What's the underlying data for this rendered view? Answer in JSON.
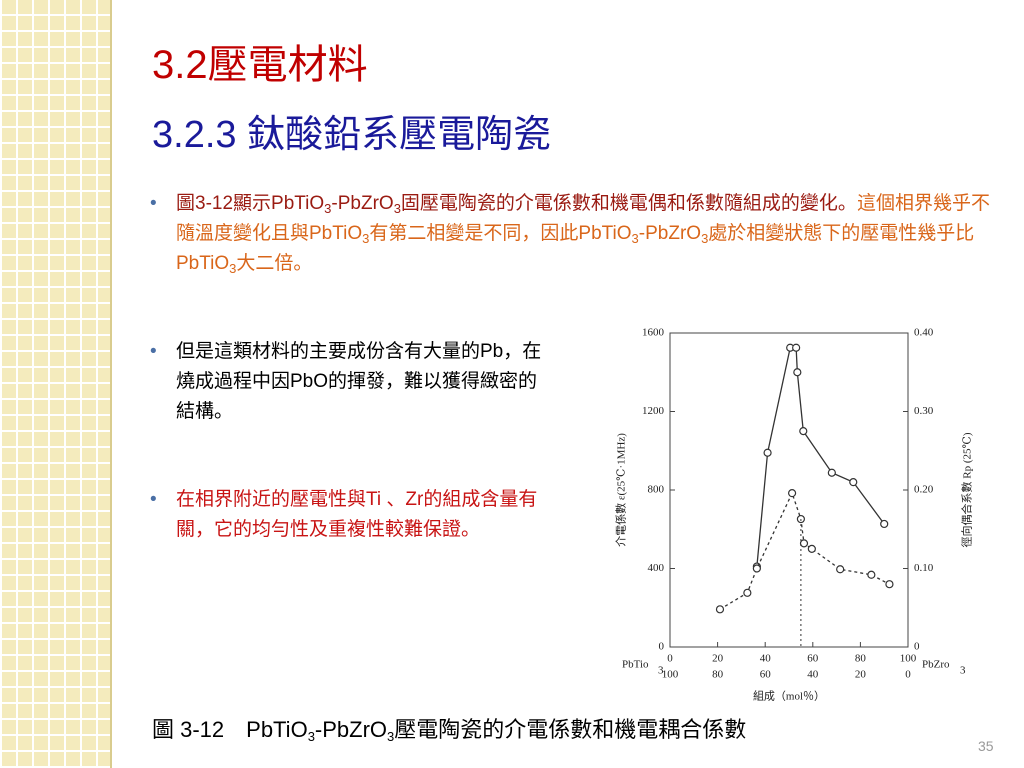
{
  "title": {
    "line1": "3.2壓電材料",
    "line2": "3.2.3 鈦酸鉛系壓電陶瓷"
  },
  "bullets": [
    {
      "runs": [
        {
          "text": "圖3-12顯示PbTiO",
          "color": "#9a1b12"
        },
        {
          "text": "3",
          "color": "#9a1b12",
          "style": "sub"
        },
        {
          "text": "-PbZrO",
          "color": "#9a1b12"
        },
        {
          "text": "3",
          "color": "#9a1b12",
          "style": "sub"
        },
        {
          "text": "固壓電陶瓷的介電係數和機電偶和係數隨組成的變化。",
          "color": "#9a1b12"
        },
        {
          "text": "這個相界幾乎不隨溫度變化且與PbTiO",
          "color": "#d9661a"
        },
        {
          "text": "3",
          "color": "#d9661a",
          "style": "sub"
        },
        {
          "text": "有第二相變是不同，因此PbTiO",
          "color": "#d9661a"
        },
        {
          "text": "3",
          "color": "#d9661a",
          "style": "sub"
        },
        {
          "text": "-PbZrO",
          "color": "#d9661a"
        },
        {
          "text": "3",
          "color": "#d9661a",
          "style": "sub"
        },
        {
          "text": "處於相變狀態下的壓電性幾乎比PbTiO",
          "color": "#d9661a"
        },
        {
          "text": "3",
          "color": "#d9661a",
          "style": "sub"
        },
        {
          "text": "大二倍。",
          "color": "#d9661a"
        }
      ]
    },
    {
      "runs": [
        {
          "text": "但是這類材料的主要成份含有大量的Pb，在燒成過程中因PbO的揮發，難以獲得緻密的結構。",
          "color": "#000000"
        }
      ]
    },
    {
      "runs": [
        {
          "text": "在相界附近的壓電性與Ti 、Zr的組成含量有關，它的均勻性及重複性較難保證。",
          "color": "#c81414"
        }
      ]
    }
  ],
  "chart_data": {
    "type": "line",
    "y_label": "介電係數 ε(25℃·1MHz)",
    "y2_label": "徑向偶合系數 Rp (25℃)",
    "x_label": "組成（mol％）",
    "x_left_label": "PbTio",
    "x_left_sub": "3",
    "x_right_label": "PbZro",
    "x_right_sub": "3",
    "xlim": [
      0,
      100
    ],
    "xticks": [
      0,
      20,
      40,
      60,
      80,
      100
    ],
    "x_second_row": [
      100,
      80,
      60,
      40,
      20,
      0
    ],
    "ylim": [
      0,
      1600
    ],
    "yticks": [
      0,
      400,
      800,
      1200,
      1600
    ],
    "y2lim": [
      0,
      0.4
    ],
    "y2ticks": [
      0,
      {
        "value": 0.1,
        "label": "0.10"
      },
      {
        "value": 0.2,
        "label": "0.20"
      },
      {
        "value": 0.3,
        "label": "0.30"
      },
      {
        "value": 0.4,
        "label": "0.40"
      }
    ],
    "series": [
      {
        "color": "#333333",
        "dash": false,
        "x": [
          36.5,
          41,
          50.5,
          53,
          53.5,
          56,
          68,
          77,
          90
        ],
        "values": [
          410,
          990,
          1525,
          1525,
          1400,
          1100,
          888,
          840,
          627
        ]
      },
      {
        "color": "#333333",
        "dash": true,
        "axis": "y2",
        "x": [
          21,
          32.5,
          36.5,
          51.3,
          55,
          56.3,
          59.6,
          71.5,
          84.6,
          92.2
        ],
        "values": [
          0.048,
          0.069,
          0.1,
          0.196,
          0.163,
          0.132,
          0.125,
          0.099,
          0.092,
          0.08
        ]
      }
    ]
  },
  "caption": {
    "runs": [
      {
        "text": "圖 3-12　PbTiO"
      },
      {
        "text": "3",
        "style": "sub"
      },
      {
        "text": "-PbZrO"
      },
      {
        "text": "3",
        "style": "sub"
      },
      {
        "text": "壓電陶瓷的介電係數和機電耦合係數"
      }
    ]
  },
  "page_number": "35"
}
